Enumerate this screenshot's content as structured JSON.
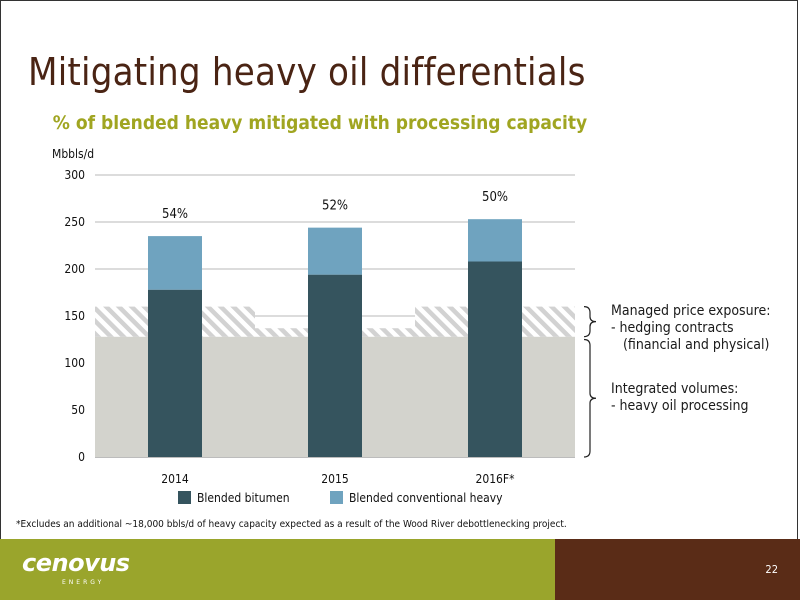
{
  "slide": {
    "title": "Mitigating heavy oil differentials",
    "subtitle": "% of blended heavy mitigated with processing capacity",
    "footnote": "*Excludes an additional ~18,000 bbls/d of heavy capacity expected as a result of the Wood River debottlenecking project.",
    "logo": "cenovus",
    "logo_sub": "ENERGY",
    "page_number": "22"
  },
  "annotations": {
    "managed": [
      "Managed price exposure:",
      "- hedging contracts",
      "(financial and physical)"
    ],
    "integrated": [
      "Integrated volumes:",
      "- heavy oil processing"
    ]
  },
  "chart_data": {
    "type": "bar",
    "stacked": true,
    "ylabel": "Mbbls/d",
    "ylim": [
      0,
      300
    ],
    "yticks": [
      0,
      50,
      100,
      150,
      200,
      250,
      300
    ],
    "grid": true,
    "categories": [
      "2014",
      "2015",
      "2016F*"
    ],
    "series": [
      {
        "name": "Blended bitumen",
        "values": [
          178,
          194,
          208
        ],
        "color": "#35545e"
      },
      {
        "name": "Blended conventional heavy",
        "values": [
          57,
          50,
          45
        ],
        "color": "#6fa3bf"
      }
    ],
    "data_labels": [
      "54%",
      "52%",
      "50%"
    ],
    "bands": {
      "integrated_volumes": {
        "from": 0,
        "to": 128,
        "color": "#d3d3cd"
      },
      "managed_price_exposure": {
        "upper": [
          160,
          137,
          160
        ],
        "color": "#cfcfcf"
      }
    },
    "legend_position": "bottom"
  }
}
